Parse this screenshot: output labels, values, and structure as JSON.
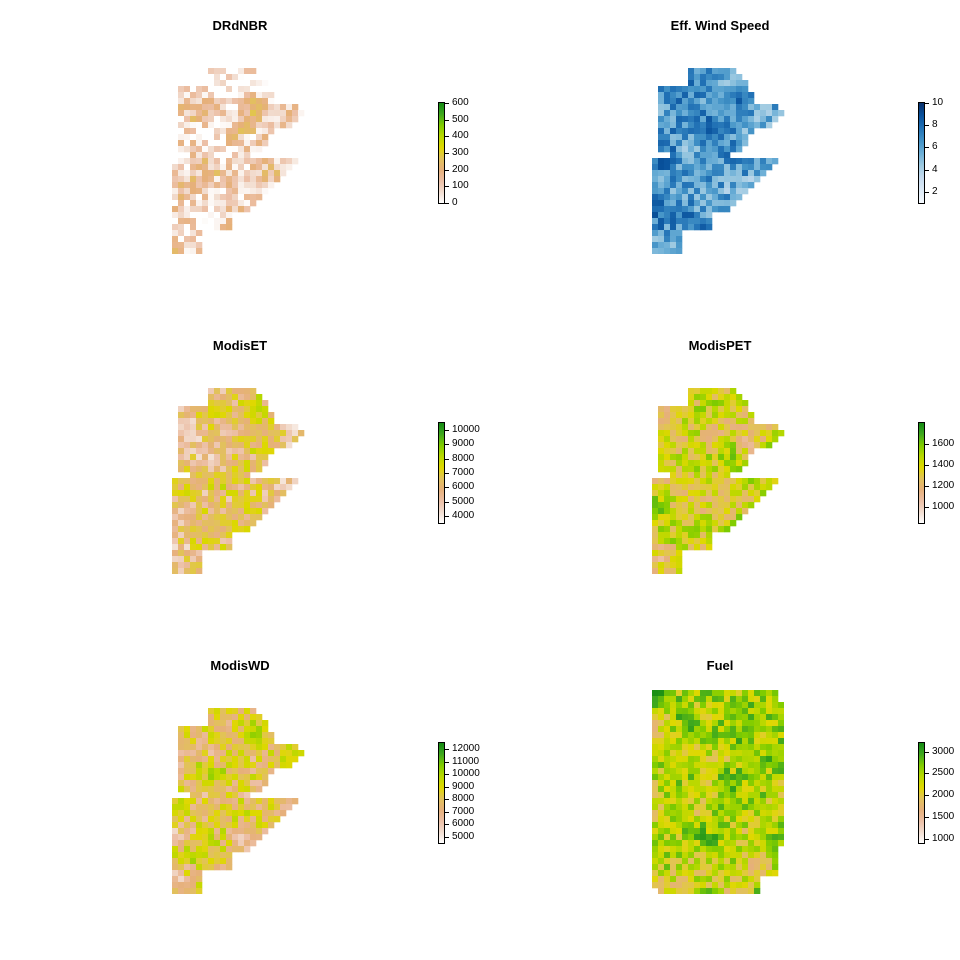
{
  "palettes": {
    "terrain": [
      "#ffffff",
      "#f2ddd0",
      "#ecbfa5",
      "#e6b07a",
      "#e2c25a",
      "#dfd800",
      "#b8d800",
      "#7fcc00",
      "#3ea81e",
      "#128a12"
    ],
    "blues": [
      "#f7fbff",
      "#deebf7",
      "#c6dbef",
      "#9ecae1",
      "#6baed6",
      "#4292c6",
      "#2171b5",
      "#08519c",
      "#08306b"
    ]
  },
  "chart_data": [
    {
      "type": "heatmap",
      "title": "DRdNBR",
      "palette": "terrain",
      "shape": "A",
      "range": [
        0,
        600
      ],
      "ticks": [
        0,
        100,
        200,
        300,
        400,
        500,
        600
      ],
      "bias": -0.35
    },
    {
      "type": "heatmap",
      "title": "Eff. Wind Speed",
      "palette": "blues",
      "shape": "A",
      "range": [
        1,
        10
      ],
      "ticks": [
        2,
        4,
        6,
        8,
        10
      ],
      "bias": 0.1
    },
    {
      "type": "heatmap",
      "title": "ModisET",
      "palette": "terrain",
      "shape": "B",
      "range": [
        3500,
        10500
      ],
      "ticks": [
        4000,
        5000,
        6000,
        7000,
        8000,
        9000,
        10000
      ],
      "bias": -0.15
    },
    {
      "type": "heatmap",
      "title": "ModisPET",
      "palette": "terrain",
      "shape": "B",
      "range": [
        850,
        1800
      ],
      "ticks": [
        1000,
        1200,
        1400,
        1600
      ],
      "bias": 0.05
    },
    {
      "type": "heatmap",
      "title": "ModisWD",
      "palette": "terrain",
      "shape": "B",
      "range": [
        4500,
        12500
      ],
      "ticks": [
        5000,
        6000,
        7000,
        8000,
        9000,
        10000,
        11000,
        12000
      ],
      "bias": -0.05
    },
    {
      "type": "heatmap",
      "title": "Fuel",
      "palette": "terrain",
      "shape": "C",
      "range": [
        900,
        3200
      ],
      "ticks": [
        1000,
        1500,
        2000,
        2500,
        3000
      ],
      "bias": 0.15
    }
  ]
}
